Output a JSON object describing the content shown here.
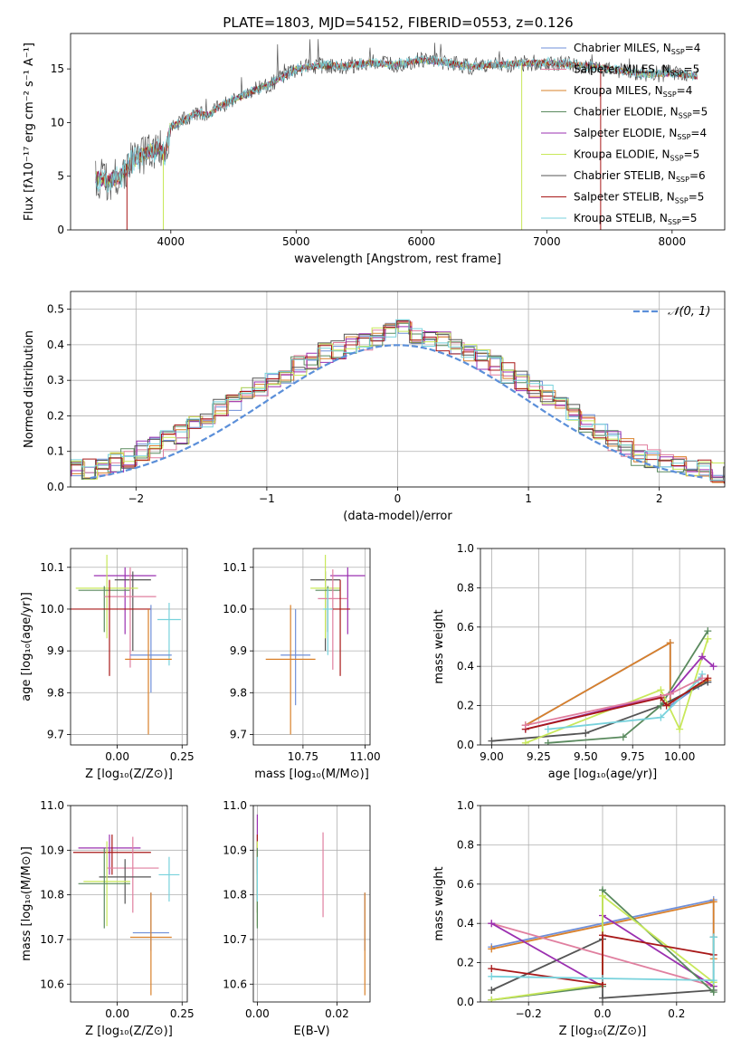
{
  "title": "PLATE=1803, MJD=54152, FIBERID=0553, z=0.126",
  "colors": {
    "Chabrier MILES": "#6f8fd8",
    "Salpeter MILES": "#e07f9f",
    "Kroupa MILES": "#d9802a",
    "Chabrier ELODIE": "#5a8a5e",
    "Salpeter ELODIE": "#9b30b0",
    "Kroupa ELODIE": "#c8e85a",
    "Chabrier STELIB": "#555555",
    "Salpeter STELIB": "#a81818",
    "Kroupa STELIB": "#78d2dc",
    "normal": "#5b8fd9"
  },
  "chart_data": [
    {
      "type": "line",
      "title": "PLATE=1803, MJD=54152, FIBERID=0553, z=0.126",
      "xlabel": "wavelength [Angstrom, rest frame]",
      "ylabel": "Flux [fλ10⁻¹⁷ erg cm⁻² s⁻¹ A⁻¹]",
      "xlim": [
        3200,
        8420
      ],
      "ylim": [
        0,
        18.3
      ],
      "xticks": [
        4000,
        5000,
        6000,
        7000,
        8000
      ],
      "yticks": [
        0,
        5,
        10,
        15
      ],
      "legend_loc": "right",
      "legend": [
        "Chabrier MILES, N_SSP=4",
        "Salpeter MILES, N_SSP=5",
        "Kroupa MILES, N_SSP=4",
        "Chabrier ELODIE, N_SSP=5",
        "Salpeter ELODIE, N_SSP=4",
        "Kroupa ELODIE, N_SSP=5",
        "Chabrier STELIB, N_SSP=6",
        "Salpeter STELIB, N_SSP=5",
        "Kroupa STELIB, N_SSP=5"
      ],
      "continuum": {
        "x": [
          3400,
          3500,
          3600,
          3700,
          3800,
          3900,
          3950,
          4000,
          4100,
          4200,
          4300,
          4400,
          4500,
          4600,
          4700,
          4800,
          4900,
          5000,
          5200,
          5400,
          5600,
          5800,
          6000,
          6200,
          6400,
          6600,
          6800,
          7000,
          7200,
          7400,
          7600,
          7800,
          8000,
          8200
        ],
        "y": [
          4.8,
          4.6,
          5.0,
          6.5,
          7.2,
          7.6,
          7.0,
          9.6,
          10.2,
          10.9,
          10.7,
          11.6,
          12.1,
          12.6,
          13.2,
          13.6,
          14.3,
          15.0,
          15.3,
          15.3,
          15.6,
          15.4,
          15.8,
          15.6,
          15.2,
          15.4,
          15.5,
          15.6,
          15.4,
          15.2,
          14.8,
          14.5,
          14.6,
          14.3
        ]
      },
      "drops": [
        {
          "x": 3650,
          "to": 0,
          "series": "Salpeter STELIB"
        },
        {
          "x": 3940,
          "to": 0,
          "series": "Kroupa ELODIE"
        },
        {
          "x": 6800,
          "to": 0,
          "series": "Kroupa ELODIE"
        },
        {
          "x": 7430,
          "to": 0,
          "series": "Salpeter STELIB"
        }
      ]
    },
    {
      "type": "bar",
      "xlabel": "(data-model)/error",
      "ylabel": "Normed distribution",
      "xlim": [
        -2.5,
        2.5
      ],
      "ylim": [
        0,
        0.55
      ],
      "xticks": [
        -2,
        -1,
        0,
        1,
        2
      ],
      "yticks": [
        0.0,
        0.1,
        0.2,
        0.3,
        0.4,
        0.5
      ],
      "bin_width": 0.1,
      "legend": [
        "𝒩(0, 1)"
      ],
      "legend_loc": "upper right",
      "gaussian": {
        "mean": 0,
        "sigma": 1
      },
      "base_hist": [
        0.02,
        0.02,
        0.03,
        0.03,
        0.04,
        0.05,
        0.05,
        0.06,
        0.07,
        0.08,
        0.1,
        0.11,
        0.13,
        0.15,
        0.17,
        0.19,
        0.22,
        0.23,
        0.26,
        0.28,
        0.3,
        0.32,
        0.34,
        0.36,
        0.38,
        0.39,
        0.4,
        0.41,
        0.42,
        0.44,
        0.46,
        0.43,
        0.42,
        0.41,
        0.4,
        0.38,
        0.36,
        0.34,
        0.32,
        0.3,
        0.28,
        0.26,
        0.24,
        0.21,
        0.18,
        0.16,
        0.13,
        0.11,
        0.09,
        0.08,
        0.07,
        0.06,
        0.05,
        0.05,
        0.04,
        0.03,
        0.03,
        0.02,
        0.02,
        0.02
      ],
      "hist_start": -3.0
    },
    {
      "type": "scatter",
      "xlabel": "Z [log₁₀(Z/Z⊙)]",
      "ylabel": "age  [log₁₀(age/yr)]",
      "xlim": [
        -0.18,
        0.27
      ],
      "ylim": [
        9.675,
        10.145
      ],
      "xticks": [
        0.0,
        0.25
      ],
      "yticks": [
        9.7,
        9.8,
        9.9,
        10.0,
        10.1
      ],
      "points": [
        {
          "s": "Salpeter ELODIE",
          "x": 0.03,
          "y": 10.08,
          "xe": 0.12,
          "ye": [
            0.14,
            0.02
          ]
        },
        {
          "s": "Chabrier STELIB",
          "x": 0.06,
          "y": 10.07,
          "xe": 0.07,
          "ye": [
            0.17,
            0.02
          ]
        },
        {
          "s": "Kroupa ELODIE",
          "x": -0.04,
          "y": 10.05,
          "xe": 0.12,
          "ye": [
            0.12,
            0.08
          ]
        },
        {
          "s": "Chabrier ELODIE",
          "x": -0.05,
          "y": 10.045,
          "xe": 0.1,
          "ye": [
            0.1,
            0.01
          ]
        },
        {
          "s": "Salpeter MILES",
          "x": 0.05,
          "y": 10.03,
          "xe": 0.1,
          "ye": [
            0.17,
            0.07
          ]
        },
        {
          "s": "Salpeter STELIB",
          "x": -0.03,
          "y": 10.0,
          "xe": 0.16,
          "ye": [
            0.16,
            0.07
          ]
        },
        {
          "s": "Kroupa STELIB",
          "x": 0.2,
          "y": 9.975,
          "xe": 0.045,
          "ye": [
            0.11,
            0.04
          ]
        },
        {
          "s": "Chabrier MILES",
          "x": 0.13,
          "y": 9.89,
          "xe": 0.08,
          "ye": [
            0.09,
            0.12
          ]
        },
        {
          "s": "Kroupa MILES",
          "x": 0.12,
          "y": 9.88,
          "xe": 0.09,
          "ye": [
            0.18,
            0.12
          ]
        }
      ]
    },
    {
      "type": "scatter",
      "xlabel": "mass [log₁₀(M/M⊙)]",
      "ylabel": "",
      "xlim": [
        10.55,
        11.02
      ],
      "ylim": [
        9.675,
        10.145
      ],
      "xticks": [
        10.75,
        11.0
      ],
      "yticks": [
        9.7,
        9.8,
        9.9,
        10.0,
        10.1
      ],
      "points": [
        {
          "s": "Salpeter ELODIE",
          "x": 10.93,
          "y": 10.08,
          "xe": 0.07,
          "ye": [
            0.14,
            0.02
          ]
        },
        {
          "s": "Chabrier STELIB",
          "x": 10.84,
          "y": 10.07,
          "xe": 0.06,
          "ye": [
            0.17,
            0.02
          ]
        },
        {
          "s": "Kroupa ELODIE",
          "x": 10.84,
          "y": 10.05,
          "xe": 0.06,
          "ye": [
            0.12,
            0.08
          ]
        },
        {
          "s": "Chabrier ELODIE",
          "x": 10.85,
          "y": 10.045,
          "xe": 0.05,
          "ye": [
            0.1,
            0.01
          ]
        },
        {
          "s": "Salpeter MILES",
          "x": 10.87,
          "y": 10.025,
          "xe": 0.06,
          "ye": [
            0.17,
            0.07
          ]
        },
        {
          "s": "Salpeter STELIB",
          "x": 10.9,
          "y": 10.0,
          "xe": 0.04,
          "ye": [
            0.16,
            0.07
          ]
        },
        {
          "s": "Kroupa STELIB",
          "x": 10.85,
          "y": 10.0,
          "xe": 0.02,
          "ye": [
            0.11,
            0.05
          ]
        },
        {
          "s": "Chabrier MILES",
          "x": 10.72,
          "y": 9.89,
          "xe": 0.06,
          "ye": [
            0.12,
            0.11
          ]
        },
        {
          "s": "Kroupa MILES",
          "x": 10.7,
          "y": 9.88,
          "xe": 0.1,
          "ye": [
            0.18,
            0.13
          ]
        }
      ]
    },
    {
      "type": "line",
      "xlabel": "age  [log₁₀(age/yr)]",
      "ylabel": "mass weight",
      "xlim": [
        8.94,
        10.24
      ],
      "ylim": [
        0,
        1.0
      ],
      "xticks": [
        9.0,
        9.25,
        9.5,
        9.75,
        10.0
      ],
      "yticks": [
        0.0,
        0.2,
        0.4,
        0.6,
        0.8,
        1.0
      ],
      "series": [
        {
          "name": "Chabrier MILES",
          "x": [
            9.18,
            9.95,
            9.95,
            10.1,
            10.15
          ],
          "y": [
            0.1,
            0.52,
            0.2,
            0.3,
            0.32
          ]
        },
        {
          "name": "Kroupa MILES",
          "x": [
            9.18,
            9.95,
            9.95,
            10.15
          ],
          "y": [
            0.1,
            0.52,
            0.22,
            0.33
          ]
        },
        {
          "name": "Chabrier STELIB",
          "x": [
            9.0,
            9.5,
            9.9,
            10.15
          ],
          "y": [
            0.02,
            0.06,
            0.2,
            0.32
          ]
        },
        {
          "name": "Chabrier ELODIE",
          "x": [
            9.3,
            9.7,
            9.9,
            10.15
          ],
          "y": [
            0.01,
            0.04,
            0.2,
            0.58
          ]
        },
        {
          "name": "Kroupa ELODIE",
          "x": [
            9.18,
            9.9,
            10.0,
            10.15
          ],
          "y": [
            0.01,
            0.28,
            0.08,
            0.54
          ]
        },
        {
          "name": "Salpeter ELODIE",
          "x": [
            9.18,
            9.95,
            10.12,
            10.18
          ],
          "y": [
            0.08,
            0.26,
            0.45,
            0.4
          ]
        },
        {
          "name": "Kroupa STELIB",
          "x": [
            9.3,
            9.9,
            10.1,
            10.12
          ],
          "y": [
            0.08,
            0.14,
            0.33,
            0.36
          ]
        },
        {
          "name": "Salpeter STELIB",
          "x": [
            9.18,
            9.9,
            9.93,
            10.15
          ],
          "y": [
            0.08,
            0.24,
            0.2,
            0.34
          ]
        },
        {
          "name": "Salpeter MILES",
          "x": [
            9.18,
            9.95,
            10.12
          ],
          "y": [
            0.1,
            0.26,
            0.34
          ]
        }
      ]
    },
    {
      "type": "scatter",
      "xlabel": "Z [log₁₀(Z/Z⊙)]",
      "ylabel": "mass [log₁₀(M/M⊙)]",
      "xlim": [
        -0.18,
        0.27
      ],
      "ylim": [
        10.56,
        11.0
      ],
      "xticks": [
        0.0,
        0.25
      ],
      "yticks": [
        10.6,
        10.7,
        10.8,
        10.9,
        11.0
      ],
      "points": [
        {
          "s": "Salpeter ELODIE",
          "x": -0.03,
          "y": 10.905,
          "xe": 0.12,
          "ye": [
            0.06,
            0.03
          ]
        },
        {
          "s": "Salpeter STELIB",
          "x": -0.02,
          "y": 10.895,
          "xe": 0.15,
          "ye": [
            0.05,
            0.04
          ]
        },
        {
          "s": "Salpeter MILES",
          "x": 0.06,
          "y": 10.86,
          "xe": 0.1,
          "ye": [
            0.1,
            0.07
          ]
        },
        {
          "s": "Chabrier STELIB",
          "x": 0.03,
          "y": 10.84,
          "xe": 0.1,
          "ye": [
            0.06,
            0.04
          ]
        },
        {
          "s": "Kroupa STELIB",
          "x": 0.2,
          "y": 10.845,
          "xe": 0.04,
          "ye": [
            0.06,
            0.04
          ]
        },
        {
          "s": "Kroupa ELODIE",
          "x": -0.04,
          "y": 10.83,
          "xe": 0.09,
          "ye": [
            0.1,
            0.09
          ]
        },
        {
          "s": "Chabrier ELODIE",
          "x": -0.05,
          "y": 10.825,
          "xe": 0.1,
          "ye": [
            0.1,
            0.08
          ]
        },
        {
          "s": "Chabrier MILES",
          "x": 0.13,
          "y": 10.715,
          "xe": 0.07,
          "ye": [
            0.04,
            0.09
          ]
        },
        {
          "s": "Kroupa MILES",
          "x": 0.13,
          "y": 10.705,
          "xe": 0.08,
          "ye": [
            0.13,
            0.1
          ]
        }
      ]
    },
    {
      "type": "scatter",
      "xlabel": "E(B-V)",
      "ylabel": "",
      "xlim": [
        -0.001,
        0.0283
      ],
      "ylim": [
        10.56,
        11.0
      ],
      "xticks": [
        0.0,
        0.02
      ],
      "yticks": [
        10.6,
        10.7,
        10.8,
        10.9,
        11.0
      ],
      "points": [
        {
          "s": "Salpeter ELODIE",
          "x": 0.0,
          "y": 10.9,
          "xe": 0,
          "ye": [
            0.05,
            0.08
          ]
        },
        {
          "s": "Salpeter STELIB",
          "x": 0.0,
          "y": 10.895,
          "xe": 0,
          "ye": [
            0.05,
            0.04
          ]
        },
        {
          "s": "Chabrier STELIB",
          "x": 0.0,
          "y": 10.84,
          "xe": 0,
          "ye": [
            0.08,
            0.04
          ]
        },
        {
          "s": "Kroupa ELODIE",
          "x": 0.0,
          "y": 10.83,
          "xe": 0,
          "ye": [
            0.1,
            0.09
          ]
        },
        {
          "s": "Chabrier ELODIE",
          "x": 0.0,
          "y": 10.825,
          "xe": 0,
          "ye": [
            0.1,
            0.08
          ]
        },
        {
          "s": "Salpeter MILES",
          "x": 0.0165,
          "y": 10.86,
          "xe": 0,
          "ye": [
            0.11,
            0.08
          ]
        },
        {
          "s": "Kroupa STELIB",
          "x": 0.0,
          "y": 10.845,
          "xe": 0,
          "ye": [
            0.06,
            0.04
          ]
        },
        {
          "s": "Chabrier MILES",
          "x": 0.027,
          "y": 10.715,
          "xe": 0,
          "ye": [
            0.04,
            0.09
          ]
        },
        {
          "s": "Kroupa MILES",
          "x": 0.027,
          "y": 10.705,
          "xe": 0,
          "ye": [
            0.13,
            0.1
          ]
        }
      ]
    },
    {
      "type": "line",
      "xlabel": "Z [log₁₀(Z/Z⊙)]",
      "ylabel": "mass weight",
      "xlim": [
        -0.33,
        0.33
      ],
      "ylim": [
        0,
        1.0
      ],
      "xticks": [
        -0.2,
        0.0,
        0.2
      ],
      "yticks": [
        0.0,
        0.2,
        0.4,
        0.6,
        0.8,
        1.0
      ],
      "series": [
        {
          "name": "Chabrier MILES",
          "x": [
            -0.3,
            0.3,
            0.3
          ],
          "y": [
            0.28,
            0.52,
            0.33
          ]
        },
        {
          "name": "Kroupa MILES",
          "x": [
            -0.3,
            0.3,
            0.3
          ],
          "y": [
            0.27,
            0.51,
            0.22
          ]
        },
        {
          "name": "Chabrier STELIB",
          "x": [
            -0.3,
            0.0,
            0.0,
            0.3
          ],
          "y": [
            0.06,
            0.32,
            0.02,
            0.06
          ]
        },
        {
          "name": "Salpeter MILES",
          "x": [
            -0.3,
            0.3
          ],
          "y": [
            0.4,
            0.08
          ]
        },
        {
          "name": "Salpeter ELODIE",
          "x": [
            -0.3,
            0.0,
            0.0,
            0.3
          ],
          "y": [
            0.4,
            0.08,
            0.44,
            0.08
          ]
        },
        {
          "name": "Chabrier ELODIE",
          "x": [
            -0.3,
            0.0,
            0.0,
            0.3,
            0.3
          ],
          "y": [
            0.01,
            0.08,
            0.57,
            0.05,
            0.33
          ]
        },
        {
          "name": "Kroupa ELODIE",
          "x": [
            -0.3,
            0.0,
            0.0,
            0.3
          ],
          "y": [
            0.01,
            0.09,
            0.54,
            0.1
          ]
        },
        {
          "name": "Salpeter STELIB",
          "x": [
            -0.3,
            0.0,
            0.0,
            0.3
          ],
          "y": [
            0.17,
            0.09,
            0.34,
            0.24
          ]
        },
        {
          "name": "Kroupa STELIB",
          "x": [
            -0.3,
            0.0,
            0.3,
            0.3
          ],
          "y": [
            0.13,
            0.12,
            0.11,
            0.33
          ]
        }
      ]
    }
  ]
}
